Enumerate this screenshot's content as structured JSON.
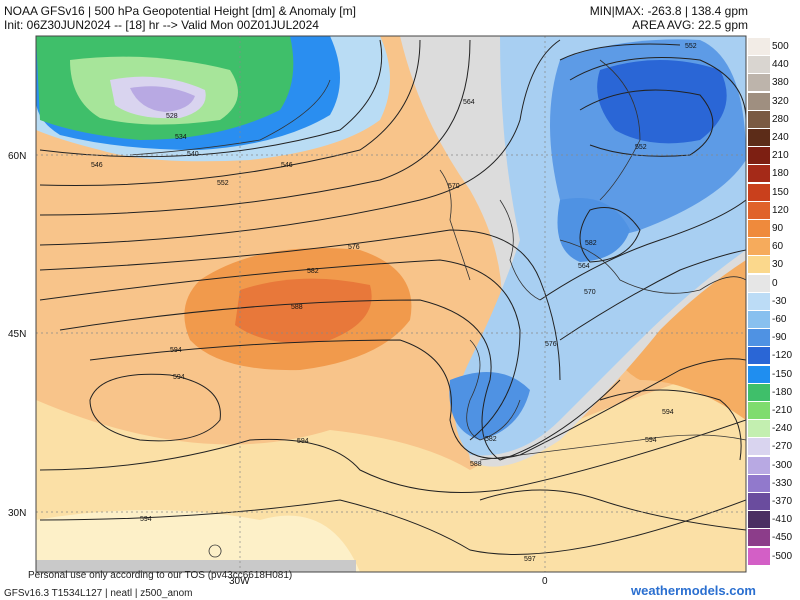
{
  "header": {
    "line1_left": "NOAA GFSv16 | 500 hPa Geopotential Height [dm] & Anomaly [m]",
    "line2_left": "Init: 06Z30JUN2024 -- [18] hr --> Valid Mon 00Z01JUL2024",
    "line1_right": "MIN|MAX: -263.8 | 138.4 gpm",
    "line2_right": "AREA AVG: 22.5 gpm"
  },
  "colorbar": {
    "labels": [
      "500",
      "440",
      "380",
      "320",
      "280",
      "240",
      "210",
      "180",
      "150",
      "120",
      "90",
      "60",
      "30",
      "0",
      "-30",
      "-60",
      "-90",
      "-120",
      "-150",
      "-180",
      "-210",
      "-240",
      "-270",
      "-300",
      "-330",
      "-370",
      "-410",
      "-450",
      "-500"
    ],
    "colors": [
      "#f2ece6",
      "#d9d5d0",
      "#bdb4ab",
      "#9f8f80",
      "#7a5a42",
      "#5c2c18",
      "#7d1f12",
      "#a52a18",
      "#c9401c",
      "#e0622a",
      "#ef8a3c",
      "#f6ab5c",
      "#fbd88c",
      "#e6e6e6",
      "#bcdcf6",
      "#88c0ef",
      "#4f92e3",
      "#2a66d6",
      "#1f8ef0",
      "#3fbf6a",
      "#7fdc6e",
      "#c3efb0",
      "#d9d4ef",
      "#b8a9e3",
      "#9179cc",
      "#6a4c9e",
      "#4b2f63",
      "#8c3d8a",
      "#d35fc6"
    ]
  },
  "map": {
    "lat_labels": [
      "60N",
      "45N",
      "30N"
    ],
    "lon_labels": [
      "30W",
      "0"
    ],
    "contour_labels": [
      "528",
      "534",
      "540",
      "546",
      "546",
      "552",
      "552",
      "552",
      "564",
      "570",
      "576",
      "576",
      "582",
      "588",
      "594",
      "594",
      "594",
      "594",
      "594",
      "594",
      "597",
      "570",
      "564",
      "582",
      "588",
      "582"
    ]
  },
  "footer": {
    "disclaimer": "Personal use only according to our TOS (pv43cc6618H081)",
    "model_info": "GFSv16.3 T1534L127 | neatl | z500_anom"
  },
  "credit": "weathermodels.com"
}
